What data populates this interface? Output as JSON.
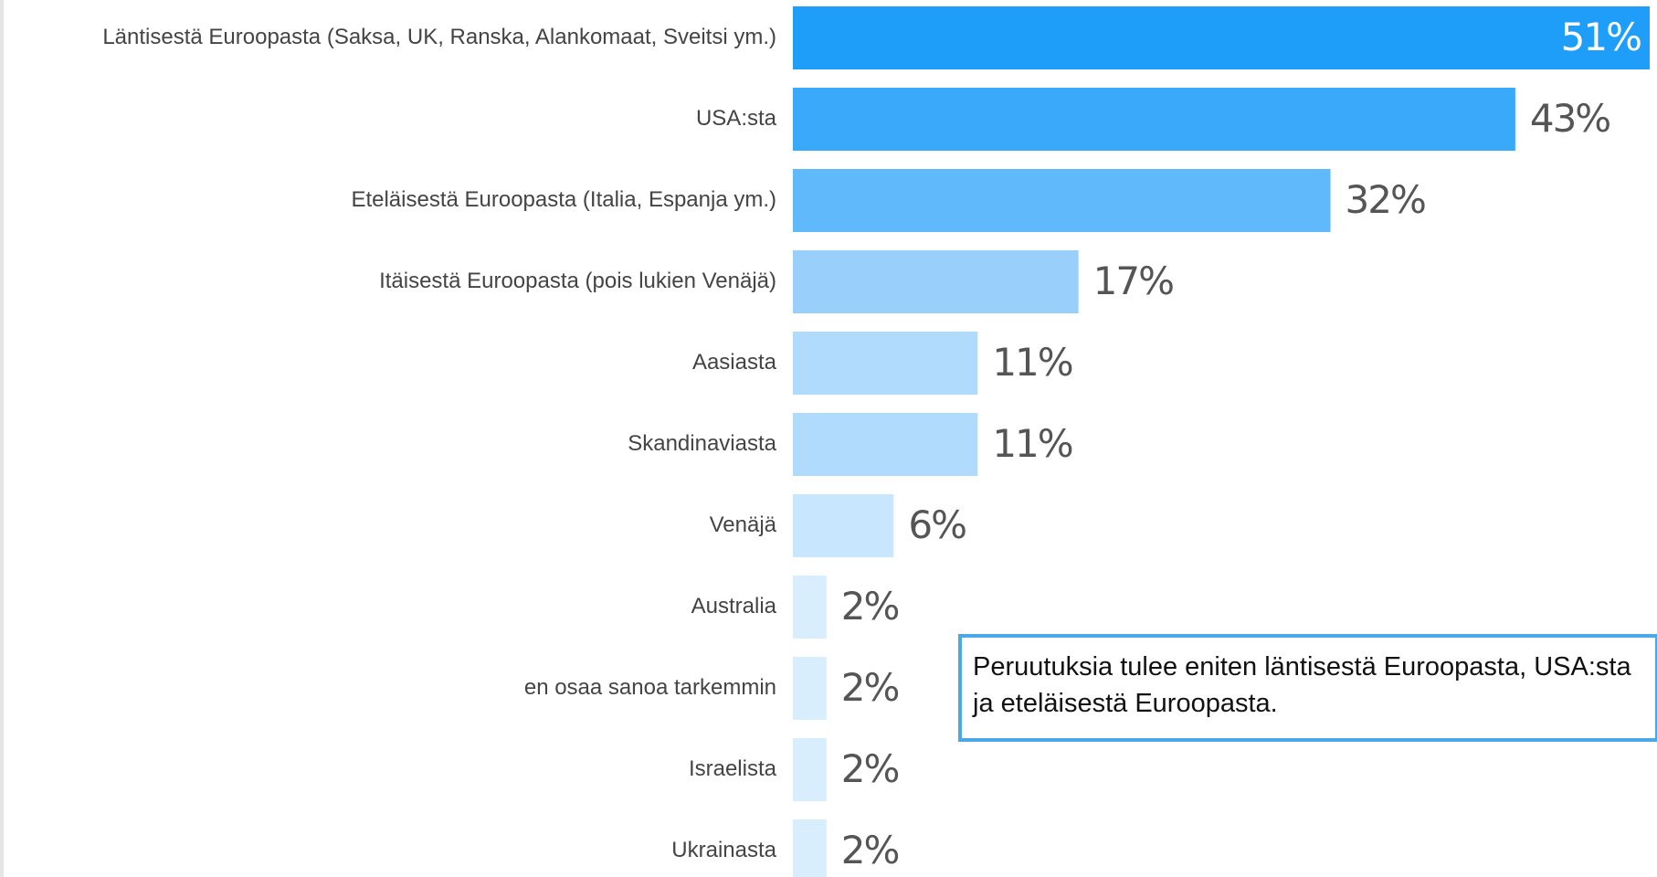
{
  "chart_data": {
    "type": "barh",
    "categories": [
      "Läntisestä Euroopasta (Saksa, UK, Ranska, Alankomaat, Sveitsi ym.)",
      "USA:sta",
      "Eteläisestä Euroopasta (Italia, Espanja ym.)",
      "Itäisestä Euroopasta (pois lukien Venäjä)",
      "Aasiasta",
      "Skandinaviasta",
      "Venäjä",
      "Australia",
      "en osaa sanoa tarkemmin",
      "Israelista",
      "Ukrainasta"
    ],
    "values": [
      51,
      43,
      32,
      17,
      11,
      11,
      6,
      2,
      2,
      2,
      2
    ],
    "value_labels": [
      "51%",
      "43%",
      "32%",
      "17%",
      "11%",
      "11%",
      "6%",
      "2%",
      "2%",
      "2%",
      "2%"
    ],
    "colors": [
      "#1e9ef8",
      "#3aa9f9",
      "#60b9fa",
      "#99d0fb",
      "#b0dbfc",
      "#b0dbfc",
      "#c8e6fd",
      "#d8edfd",
      "#d8edfd",
      "#d8edfd",
      "#d8edfd"
    ],
    "annotation": "Peruutuksia tulee eniten läntisestä Euroopasta, USA:sta ja eteläisestä Euroopasta."
  }
}
